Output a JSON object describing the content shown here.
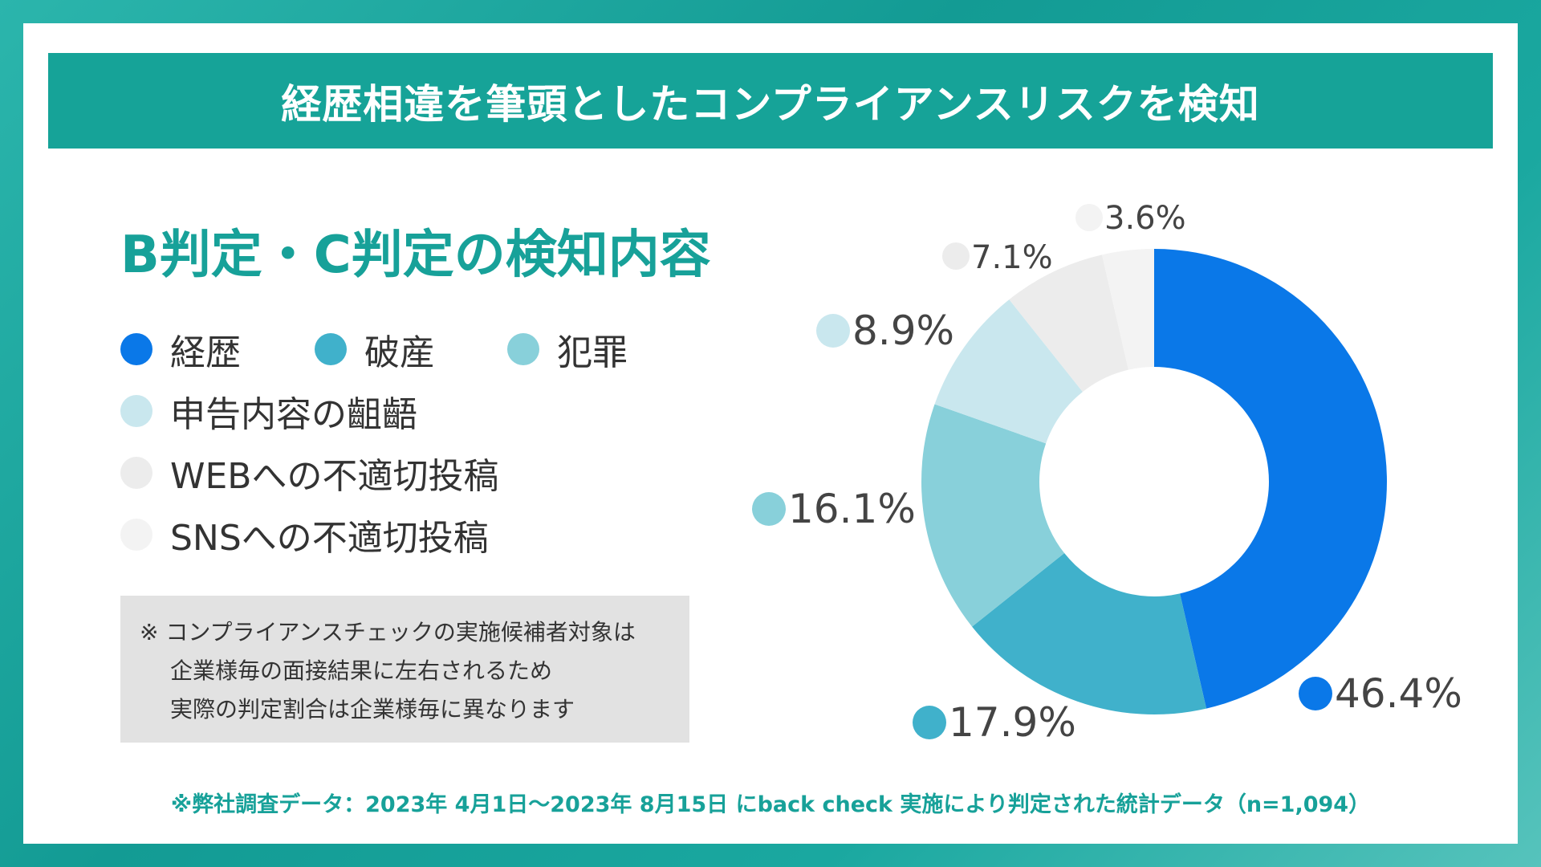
{
  "title": "経歴相違を筆頭としたコンプライアンスリスクを検知",
  "subtitle": "B判定・C判定の検知内容",
  "legend": [
    {
      "label": "経歴",
      "color": "#0a78e8"
    },
    {
      "label": "破産",
      "color": "#40b1cb"
    },
    {
      "label": "犯罪",
      "color": "#88d0da"
    },
    {
      "label": "申告内容の齟齬",
      "color": "#c9e7ee"
    },
    {
      "label": "WEBへの不適切投稿",
      "color": "#ececec"
    },
    {
      "label": "SNSへの不適切投稿",
      "color": "#f3f3f3"
    }
  ],
  "note": {
    "line1": "※ コンプライアンスチェックの実施候補者対象は",
    "line2": "企業様毎の面接結果に左右されるため",
    "line3": "実際の判定割合は企業様毎に異なります"
  },
  "footnote": "※弊社調査データ：2023年 4月1日〜2023年 8月15日 にback check 実施により判定された統計データ（n=1,094）",
  "chart_data": {
    "type": "pie",
    "donut": true,
    "title": "B判定・C判定の検知内容",
    "categories": [
      "経歴",
      "破産",
      "犯罪",
      "申告内容の齟齬",
      "WEBへの不適切投稿",
      "SNSへの不適切投稿"
    ],
    "values": [
      46.4,
      17.9,
      16.1,
      8.9,
      7.1,
      3.6
    ],
    "labels": [
      "46.4%",
      "17.9%",
      "16.1%",
      "8.9%",
      "7.1%",
      "3.6%"
    ],
    "colors": [
      "#0a78e8",
      "#40b1cb",
      "#88d0da",
      "#c9e7ee",
      "#ececec",
      "#f3f3f3"
    ],
    "direction": "clockwise from top"
  }
}
